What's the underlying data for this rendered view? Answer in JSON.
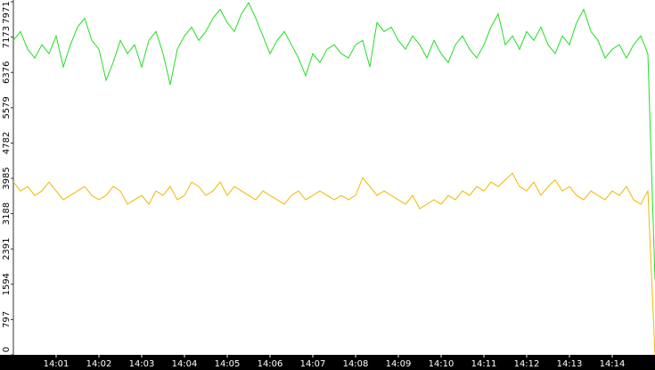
{
  "chart_data": {
    "type": "line",
    "categories": [
      null,
      null,
      null,
      null,
      null,
      null,
      "14:01",
      null,
      null,
      null,
      null,
      null,
      "14:02",
      null,
      null,
      null,
      null,
      null,
      "14:03",
      null,
      null,
      null,
      null,
      null,
      "14:04",
      null,
      null,
      null,
      null,
      null,
      "14:05",
      null,
      null,
      null,
      null,
      null,
      "14:06",
      null,
      null,
      null,
      null,
      null,
      "14:07",
      null,
      null,
      null,
      null,
      null,
      "14:08",
      null,
      null,
      null,
      null,
      null,
      "14:09",
      null,
      null,
      null,
      null,
      null,
      "14:10",
      null,
      null,
      null,
      null,
      null,
      "14:11",
      null,
      null,
      null,
      null,
      null,
      "14:12",
      null,
      null,
      null,
      null,
      null,
      "14:13",
      null,
      null,
      null,
      null,
      null,
      "14:14",
      null,
      null,
      null,
      null,
      null,
      null
    ],
    "series": [
      {
        "color": "#22dd22",
        "values": [
          7100,
          7300,
          6900,
          6700,
          7000,
          6800,
          7200,
          6500,
          7000,
          7400,
          7600,
          7100,
          6900,
          6200,
          6600,
          7100,
          6800,
          7000,
          6500,
          7100,
          7300,
          6800,
          6100,
          6900,
          7200,
          7400,
          7100,
          7300,
          7600,
          7800,
          7500,
          7300,
          7700,
          7950,
          7600,
          7200,
          6800,
          7100,
          7300,
          7000,
          6700,
          6300,
          6800,
          6600,
          6900,
          7000,
          6800,
          6700,
          7000,
          7100,
          6500,
          7500,
          7300,
          7400,
          7100,
          6900,
          7200,
          7000,
          6700,
          7100,
          6800,
          6600,
          7000,
          7200,
          6900,
          6700,
          7000,
          7400,
          7700,
          7000,
          7200,
          6900,
          7300,
          7100,
          7400,
          7000,
          6800,
          7200,
          7000,
          7500,
          7800,
          7300,
          7100,
          6700,
          6900,
          7000,
          6700,
          7000,
          7200,
          6800,
          1700
        ]
      },
      {
        "color": "#f0b800",
        "values": [
          3900,
          3700,
          3800,
          3600,
          3700,
          3900,
          3700,
          3500,
          3600,
          3700,
          3800,
          3600,
          3500,
          3600,
          3800,
          3700,
          3400,
          3500,
          3600,
          3400,
          3700,
          3600,
          3800,
          3500,
          3600,
          3900,
          3800,
          3600,
          3700,
          3900,
          3600,
          3800,
          3700,
          3600,
          3500,
          3700,
          3600,
          3500,
          3400,
          3600,
          3700,
          3500,
          3600,
          3700,
          3600,
          3500,
          3600,
          3500,
          3600,
          4000,
          3800,
          3600,
          3700,
          3600,
          3500,
          3400,
          3600,
          3300,
          3400,
          3500,
          3400,
          3600,
          3500,
          3700,
          3600,
          3800,
          3700,
          3900,
          3800,
          3950,
          4100,
          3800,
          3700,
          3900,
          3600,
          3800,
          3950,
          3700,
          3800,
          3600,
          3500,
          3700,
          3600,
          3500,
          3700,
          3600,
          3800,
          3500,
          3400,
          3700,
          0
        ]
      }
    ],
    "ylim": [
      0,
      7971
    ],
    "yticks": [
      0,
      797,
      1594,
      2391,
      3188,
      3985,
      4782,
      5579,
      6376,
      7173,
      7971
    ]
  }
}
